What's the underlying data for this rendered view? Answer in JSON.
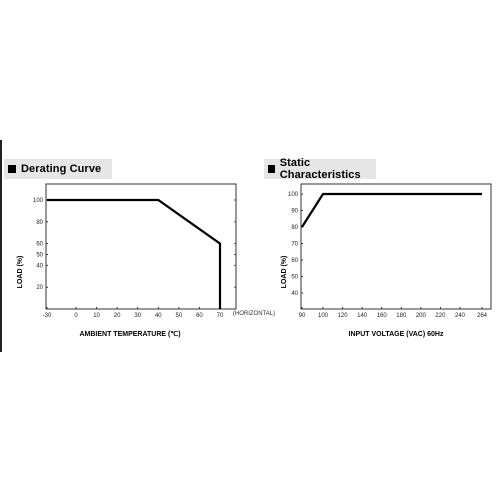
{
  "sections": {
    "derating": {
      "title": "Derating Curve"
    },
    "static": {
      "title": "Static Characteristics"
    }
  },
  "chart_data": [
    {
      "type": "line",
      "title": "Derating Curve",
      "xlabel": "AMBIENT TEMPERATURE (℃)",
      "ylabel": "LOAD (%)",
      "x_unit_note": "(HORIZONTAL)",
      "x_ticks": [
        "-30",
        "0",
        "10",
        "20",
        "30",
        "40",
        "50",
        "60",
        "70"
      ],
      "x_tick_values": [
        -30,
        0,
        10,
        20,
        30,
        40,
        50,
        60,
        70
      ],
      "y_ticks": [
        "100",
        "80",
        "60",
        "50",
        "40",
        "20"
      ],
      "y_tick_values": [
        100,
        80,
        60,
        50,
        40,
        20
      ],
      "series": [
        {
          "x": [
            -30,
            40,
            70,
            70
          ],
          "y": [
            100,
            100,
            60,
            0
          ]
        }
      ],
      "line_color": "#000000"
    },
    {
      "type": "line",
      "title": "Static Characteristics",
      "xlabel": "INPUT VOLTAGE (VAC) 60Hz",
      "ylabel": "LOAD (%)",
      "x_ticks": [
        "90",
        "100",
        "120",
        "140",
        "160",
        "180",
        "200",
        "220",
        "240",
        "264"
      ],
      "x_tick_values": [
        90,
        100,
        120,
        140,
        160,
        180,
        200,
        220,
        240,
        264
      ],
      "y_ticks": [
        "100",
        "90",
        "80",
        "70",
        "60",
        "50",
        "40"
      ],
      "y_tick_values": [
        100,
        90,
        80,
        70,
        60,
        50,
        40
      ],
      "series": [
        {
          "x": [
            90,
            100,
            264
          ],
          "y": [
            80,
            100,
            100
          ]
        }
      ],
      "line_color": "#000000"
    }
  ]
}
